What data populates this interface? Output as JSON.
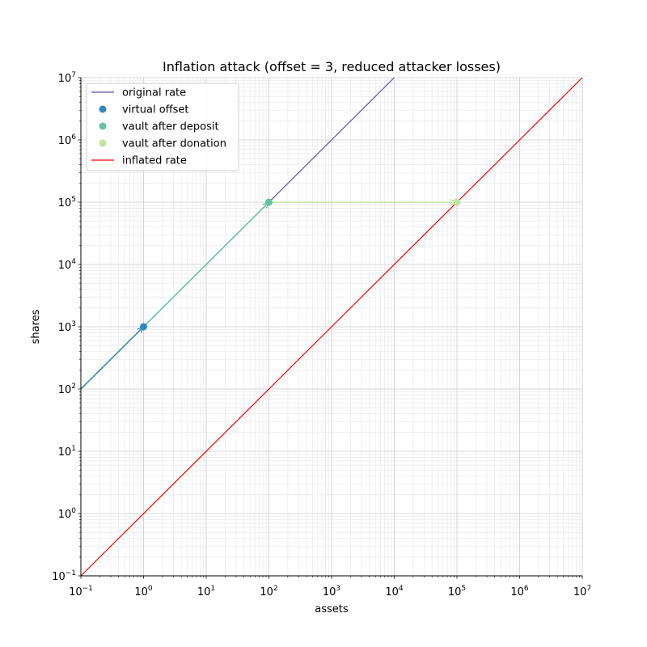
{
  "chart_data": {
    "type": "line",
    "title": "Inflation attack (offset = 3, reduced attacker losses)",
    "xlabel": "assets",
    "ylabel": "shares",
    "xscale": "log",
    "yscale": "log",
    "xlim": [
      0.1,
      10000000
    ],
    "ylim": [
      0.1,
      10000000
    ],
    "grid": "major and minor",
    "legend_position": "top-left",
    "x_tick_labels": [
      {
        "base": "10",
        "exp": "−1"
      },
      {
        "base": "10",
        "exp": "0"
      },
      {
        "base": "10",
        "exp": "1"
      },
      {
        "base": "10",
        "exp": "2"
      },
      {
        "base": "10",
        "exp": "3"
      },
      {
        "base": "10",
        "exp": "4"
      },
      {
        "base": "10",
        "exp": "5"
      },
      {
        "base": "10",
        "exp": "6"
      },
      {
        "base": "10",
        "exp": "7"
      }
    ],
    "y_tick_labels": [
      {
        "base": "10",
        "exp": "−1"
      },
      {
        "base": "10",
        "exp": "0"
      },
      {
        "base": "10",
        "exp": "1"
      },
      {
        "base": "10",
        "exp": "2"
      },
      {
        "base": "10",
        "exp": "3"
      },
      {
        "base": "10",
        "exp": "4"
      },
      {
        "base": "10",
        "exp": "5"
      },
      {
        "base": "10",
        "exp": "6"
      },
      {
        "base": "10",
        "exp": "7"
      }
    ],
    "lines": [
      {
        "name": "original rate",
        "color": "#5e4fa2",
        "x": [
          0.1,
          10000
        ],
        "y": [
          100,
          10000000
        ]
      },
      {
        "name": "inflated rate",
        "color": "#ff0000",
        "x": [
          0.1,
          10000000
        ],
        "y": [
          0.1,
          10000000
        ]
      }
    ],
    "points": [
      {
        "name": "virtual offset",
        "color": "#3288bd",
        "x": 1,
        "y": 1000
      },
      {
        "name": "vault after deposit",
        "color": "#66c2a5",
        "x": 100,
        "y": 100000
      },
      {
        "name": "vault after donation",
        "color": "#bfe5a0",
        "x": 100000,
        "y": 100000
      }
    ],
    "arrows": [
      {
        "color": "#3288bd",
        "from": [
          0.1,
          100
        ],
        "to": [
          1,
          1000
        ]
      },
      {
        "color": "#66c2a5",
        "from": [
          1,
          1000
        ],
        "to": [
          100,
          100000
        ]
      },
      {
        "color": "#bfe5a0",
        "from": [
          100,
          100000
        ],
        "to": [
          100000,
          100000
        ]
      }
    ],
    "legend": [
      {
        "label": "original rate",
        "kind": "line",
        "color": "#5e4fa2"
      },
      {
        "label": "virtual offset",
        "kind": "dot",
        "color": "#3288bd"
      },
      {
        "label": "vault after deposit",
        "kind": "dot",
        "color": "#66c2a5"
      },
      {
        "label": "vault after donation",
        "kind": "dot",
        "color": "#bfe5a0"
      },
      {
        "label": "inflated rate",
        "kind": "line",
        "color": "#ff0000"
      }
    ]
  }
}
